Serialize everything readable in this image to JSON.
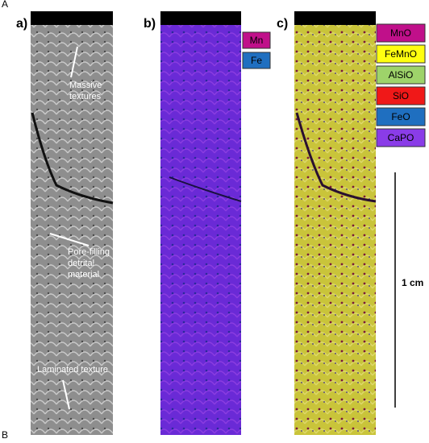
{
  "corner_labels": {
    "top": "A",
    "bottom": "B"
  },
  "panels": [
    {
      "label": "a)",
      "annotations": [
        {
          "lines": [
            "Massive",
            "textures"
          ]
        },
        {
          "lines": [
            "Pore-filling",
            "detrital",
            "material"
          ]
        },
        {
          "lines": [
            "Laminated texture"
          ]
        }
      ]
    },
    {
      "label": "b)",
      "legend": [
        "Mn",
        "Fe"
      ]
    },
    {
      "label": "c)",
      "legend": [
        "MnO",
        "FeMnO",
        "AlSiO",
        "SiO",
        "FeO",
        "CaPO"
      ]
    }
  ],
  "scale_bar": {
    "label": "1 cm"
  }
}
